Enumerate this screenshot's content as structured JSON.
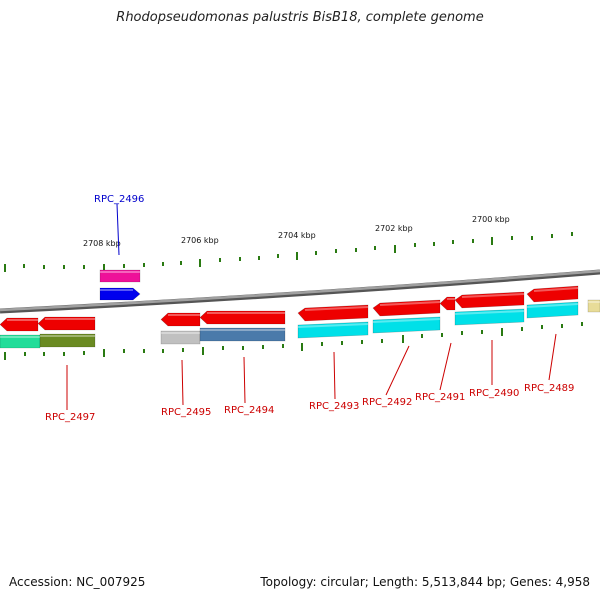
{
  "title": "Rhodopseudomonas palustris BisB18, complete genome",
  "footer": {
    "accession": "Accession: NC_007925",
    "summary": "Topology: circular; Length: 5,513,844 bp; Genes: 4,958"
  },
  "colors": {
    "backbone": "#8a8a8a",
    "tick": "#2a7a12",
    "label_red": "#cc0000",
    "label_blue": "#0000cc",
    "gene_red": "#ee0000",
    "gene_cyan": "#00e0e8",
    "gene_magenta": "#ee1199",
    "gene_blue": "#0000ee",
    "gene_green": "#22dd99",
    "gene_olive": "#6a8a22",
    "gene_grey": "#c0c0c0",
    "gene_steel": "#4a7aaa",
    "gene_khaki": "#e8dc98"
  },
  "kbp_labels": [
    {
      "text": "2708 kbp"
    },
    {
      "text": "2706 kbp"
    },
    {
      "text": "2704 kbp"
    },
    {
      "text": "2702 kbp"
    },
    {
      "text": "2700 kbp"
    }
  ],
  "gene_labels": [
    {
      "text": "RPC_2496",
      "color": "blue"
    },
    {
      "text": "RPC_2497",
      "color": "red"
    },
    {
      "text": "RPC_2495",
      "color": "red"
    },
    {
      "text": "RPC_2494",
      "color": "red"
    },
    {
      "text": "RPC_2493",
      "color": "red"
    },
    {
      "text": "RPC_2492",
      "color": "red"
    },
    {
      "text": "RPC_2491",
      "color": "red"
    },
    {
      "text": "RPC_2490",
      "color": "red"
    },
    {
      "text": "RPC_2489",
      "color": "red"
    }
  ]
}
